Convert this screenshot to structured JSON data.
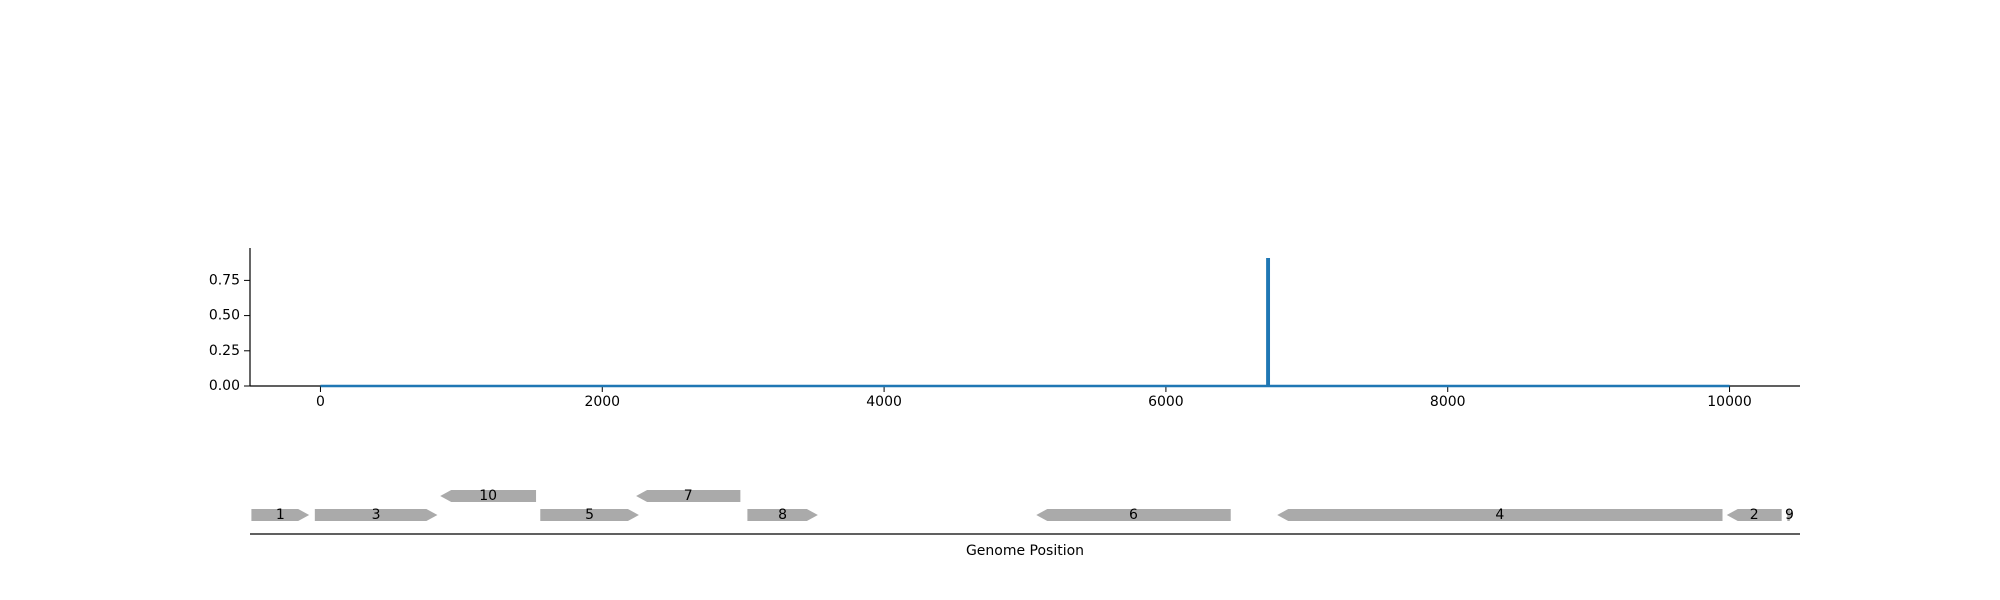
{
  "chart_data": [
    {
      "type": "line",
      "xlabel": "",
      "ylabel": "",
      "xlim": [
        -500,
        10500
      ],
      "ylim": [
        0,
        0.98
      ],
      "x_ticks": [
        0,
        2000,
        4000,
        6000,
        8000,
        10000
      ],
      "y_ticks": [
        0.0,
        0.25,
        0.5,
        0.75
      ],
      "series": [
        {
          "color": "#1f77b4",
          "points": [
            [
              0,
              0
            ],
            [
              6720,
              0
            ],
            [
              6720,
              0.9
            ],
            [
              6730,
              0.9
            ],
            [
              6730,
              0
            ],
            [
              10000,
              0
            ]
          ]
        }
      ]
    },
    {
      "type": "gene-map",
      "xlabel": "Genome Position",
      "genes": [
        {
          "label": "1",
          "start": -490,
          "end": -80,
          "strand": "+",
          "row": 0
        },
        {
          "label": "3",
          "start": -40,
          "end": 830,
          "strand": "+",
          "row": 0
        },
        {
          "label": "10",
          "start": 850,
          "end": 1530,
          "strand": "-",
          "row": 1
        },
        {
          "label": "5",
          "start": 1560,
          "end": 2260,
          "strand": "+",
          "row": 0
        },
        {
          "label": "7",
          "start": 2240,
          "end": 2980,
          "strand": "-",
          "row": 1
        },
        {
          "label": "8",
          "start": 3030,
          "end": 3530,
          "strand": "+",
          "row": 0
        },
        {
          "label": "6",
          "start": 5080,
          "end": 6460,
          "strand": "-",
          "row": 0
        },
        {
          "label": "4",
          "start": 6790,
          "end": 9950,
          "strand": "-",
          "row": 0
        },
        {
          "label": "2",
          "start": 9980,
          "end": 10370,
          "strand": "-",
          "row": 0
        },
        {
          "label": "9",
          "start": 10410,
          "end": 10440,
          "strand": "+",
          "row": 0
        }
      ],
      "colors": {
        "gene": "#aaaaaa",
        "axis": "#000000"
      }
    }
  ]
}
